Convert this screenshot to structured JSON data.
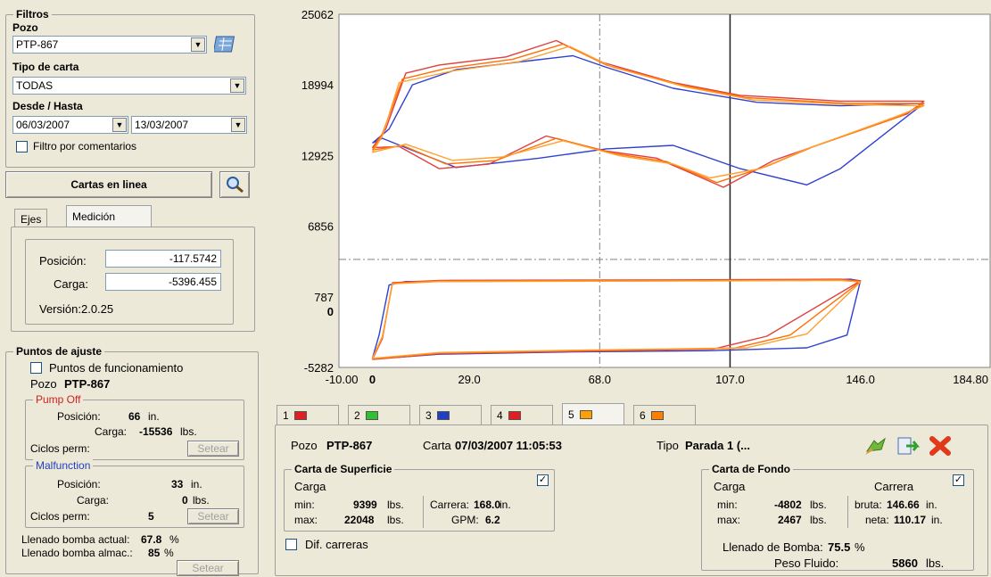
{
  "filters": {
    "title": "Filtros",
    "pozo_label": "Pozo",
    "pozo_value": "PTP-867",
    "tipo_label": "Tipo de carta",
    "tipo_value": "TODAS",
    "dates_label": "Desde / Hasta",
    "desde": "06/03/2007",
    "hasta": "13/03/2007",
    "comment_filter_label": "Filtro por comentarios",
    "comment_filter_checked": false
  },
  "online_button": "Cartas en linea",
  "tabs": {
    "ejes": "Ejes",
    "medicion": "Medición",
    "active": "medicion"
  },
  "medicion": {
    "posicion_label": "Posición:",
    "posicion_value": "-117.5742",
    "carga_label": "Carga:",
    "carga_value": "-5396.455",
    "version": "Versión:2.0.25"
  },
  "ajuste": {
    "title": "Puntos de ajuste",
    "funcionamiento_label": "Puntos de funcionamiento",
    "pozo_label": "Pozo",
    "pozo_value": "PTP-867",
    "pump_off": {
      "title": "Pump Off",
      "posicion_label": "Posición:",
      "posicion_value": "66",
      "posicion_unit": "in.",
      "carga_label": "Carga:",
      "carga_value": "-15536",
      "carga_unit": "lbs.",
      "ciclos_label": "Ciclos perm:",
      "setear": "Setear"
    },
    "malfunction": {
      "title": "Malfunction",
      "posicion_label": "Posición:",
      "posicion_value": "33",
      "posicion_unit": "in.",
      "carga_label": "Carga:",
      "carga_value": "0",
      "carga_unit": "lbs.",
      "ciclos_label": "Ciclos perm:",
      "ciclos_value": "5",
      "setear": "Setear"
    },
    "llenado_actual_label": "Llenado bomba actual:",
    "llenado_actual_value": "67.8",
    "llenado_almac_label": "Llenado bomba almac.:",
    "llenado_almac_value": "85",
    "percent": "%",
    "setear": "Setear"
  },
  "card_tabs": [
    {
      "label": "1",
      "color": "#e02020"
    },
    {
      "label": "2",
      "color": "#30c030"
    },
    {
      "label": "3",
      "color": "#2040c0"
    },
    {
      "label": "4",
      "color": "#e02020"
    },
    {
      "label": "5",
      "color": "#ffa000"
    },
    {
      "label": "6",
      "color": "#ff8000"
    }
  ],
  "card_info": {
    "pozo_label": "Pozo",
    "pozo_value": "PTP-867",
    "carta_label": "Carta",
    "carta_value": "07/03/2007 11:05:53",
    "tipo_label": "Tipo",
    "tipo_value": "Parada 1 (..."
  },
  "superficie": {
    "title": "Carta de Superficie",
    "carga_label": "Carga",
    "min_label": "min:",
    "min_value": "9399",
    "max_label": "max:",
    "max_value": "22048",
    "lbs": "lbs.",
    "carrera_label": "Carrera:",
    "carrera_value": "168.0",
    "carrera_unit": "in.",
    "gpm_label": "GPM:",
    "gpm_value": "6.2",
    "checked": true
  },
  "fondo": {
    "title": "Carta de Fondo",
    "carga_label": "Carga",
    "carrera_label": "Carrera",
    "min_label": "min:",
    "min_value": "-4802",
    "max_label": "max:",
    "max_value": "2467",
    "lbs": "lbs.",
    "bruta_label": "bruta:",
    "bruta_value": "146.66",
    "neta_label": "neta:",
    "neta_value": "110.17",
    "in": "in.",
    "llenado_label": "Llenado de Bomba:",
    "llenado_value": "75.5",
    "percent": "%",
    "peso_label": "Peso Fluido:",
    "peso_value": "5860",
    "peso_unit": "lbs.",
    "checked": true
  },
  "dif_carreras_label": "Dif. carreras",
  "dif_carreras_checked": false,
  "chart_data": {
    "type": "line",
    "y_ticks": [
      "25062",
      "18994",
      "12925",
      "6856",
      "787",
      "0",
      "-5282"
    ],
    "x_ticks": [
      "-10.00",
      "0",
      "29.0",
      "68.0",
      "107.0",
      "146.0",
      "184.80"
    ],
    "xlim": [
      -10.0,
      184.8
    ],
    "ylim": [
      -5282,
      25062
    ],
    "cursor_x": 107.0,
    "crosshair": {
      "x": 68.0,
      "y": 4000
    },
    "series": [
      {
        "color": "#3040d0",
        "surface": [
          [
            0,
            14000
          ],
          [
            5,
            15200
          ],
          [
            12,
            19000
          ],
          [
            25,
            20300
          ],
          [
            45,
            21000
          ],
          [
            60,
            21500
          ],
          [
            70,
            20500
          ],
          [
            90,
            18700
          ],
          [
            115,
            17500
          ],
          [
            140,
            17200
          ],
          [
            165,
            17400
          ],
          [
            160,
            16300
          ],
          [
            140,
            11800
          ],
          [
            130,
            10400
          ],
          [
            110,
            11800
          ],
          [
            90,
            13800
          ],
          [
            70,
            13500
          ],
          [
            50,
            12700
          ],
          [
            25,
            11900
          ],
          [
            10,
            13600
          ],
          [
            3,
            14400
          ],
          [
            0,
            14000
          ]
        ],
        "downhole": [
          [
            0,
            -4500
          ],
          [
            2,
            -2500
          ],
          [
            5,
            1800
          ],
          [
            10,
            2100
          ],
          [
            130,
            2200
          ],
          [
            143,
            2300
          ],
          [
            146,
            2150
          ],
          [
            142,
            -2500
          ],
          [
            130,
            -3600
          ],
          [
            100,
            -3850
          ],
          [
            60,
            -3950
          ],
          [
            20,
            -4150
          ],
          [
            8,
            -4400
          ],
          [
            0,
            -4500
          ]
        ]
      },
      {
        "color": "#e04040",
        "surface": [
          [
            0,
            13600
          ],
          [
            4,
            15200
          ],
          [
            10,
            20000
          ],
          [
            20,
            20700
          ],
          [
            40,
            21400
          ],
          [
            55,
            22800
          ],
          [
            68,
            21000
          ],
          [
            90,
            19200
          ],
          [
            110,
            18100
          ],
          [
            140,
            17600
          ],
          [
            165,
            17600
          ],
          [
            160,
            16500
          ],
          [
            135,
            14000
          ],
          [
            120,
            12500
          ],
          [
            105,
            10200
          ],
          [
            85,
            12700
          ],
          [
            70,
            13300
          ],
          [
            52,
            14600
          ],
          [
            35,
            12200
          ],
          [
            20,
            11800
          ],
          [
            8,
            13700
          ],
          [
            0,
            13600
          ]
        ],
        "downhole": [
          [
            0,
            -4600
          ],
          [
            3,
            -2800
          ],
          [
            6,
            2000
          ],
          [
            20,
            2200
          ],
          [
            100,
            2250
          ],
          [
            140,
            2300
          ],
          [
            146,
            2150
          ],
          [
            118,
            -2600
          ],
          [
            102,
            -3700
          ],
          [
            60,
            -3900
          ],
          [
            20,
            -4100
          ],
          [
            8,
            -4400
          ],
          [
            0,
            -4600
          ]
        ]
      },
      {
        "color": "#ff7000",
        "surface": [
          [
            0,
            13400
          ],
          [
            3,
            14800
          ],
          [
            9,
            19500
          ],
          [
            22,
            20400
          ],
          [
            42,
            21200
          ],
          [
            57,
            22500
          ],
          [
            70,
            20700
          ],
          [
            92,
            19000
          ],
          [
            112,
            17900
          ],
          [
            142,
            17400
          ],
          [
            165,
            17400
          ],
          [
            158,
            16300
          ],
          [
            132,
            13700
          ],
          [
            118,
            12000
          ],
          [
            103,
            10600
          ],
          [
            88,
            12400
          ],
          [
            72,
            13100
          ],
          [
            55,
            14400
          ],
          [
            37,
            12500
          ],
          [
            22,
            12200
          ],
          [
            9,
            13800
          ],
          [
            0,
            13400
          ]
        ],
        "downhole": [
          [
            0,
            -4550
          ],
          [
            3,
            -2700
          ],
          [
            6,
            1950
          ],
          [
            20,
            2150
          ],
          [
            100,
            2200
          ],
          [
            140,
            2250
          ],
          [
            146,
            2100
          ],
          [
            125,
            -2500
          ],
          [
            108,
            -3650
          ],
          [
            60,
            -3850
          ],
          [
            20,
            -4050
          ],
          [
            8,
            -4350
          ],
          [
            0,
            -4550
          ]
        ]
      },
      {
        "color": "#ffa030",
        "surface": [
          [
            0,
            13200
          ],
          [
            3,
            14600
          ],
          [
            8,
            19200
          ],
          [
            24,
            20200
          ],
          [
            44,
            21000
          ],
          [
            59,
            22300
          ],
          [
            72,
            20500
          ],
          [
            94,
            18800
          ],
          [
            114,
            17700
          ],
          [
            144,
            17300
          ],
          [
            165,
            17200
          ],
          [
            156,
            16200
          ],
          [
            130,
            13500
          ],
          [
            116,
            11800
          ],
          [
            101,
            11000
          ],
          [
            90,
            12200
          ],
          [
            74,
            12900
          ],
          [
            57,
            14200
          ],
          [
            39,
            12800
          ],
          [
            24,
            12500
          ],
          [
            10,
            13900
          ],
          [
            0,
            13200
          ]
        ],
        "downhole": [
          [
            0,
            -4500
          ],
          [
            3,
            -2600
          ],
          [
            6,
            1900
          ],
          [
            20,
            2100
          ],
          [
            100,
            2150
          ],
          [
            140,
            2200
          ],
          [
            146,
            2050
          ],
          [
            130,
            -2400
          ],
          [
            112,
            -3600
          ],
          [
            60,
            -3800
          ],
          [
            20,
            -4000
          ],
          [
            8,
            -4300
          ],
          [
            0,
            -4500
          ]
        ]
      }
    ]
  }
}
